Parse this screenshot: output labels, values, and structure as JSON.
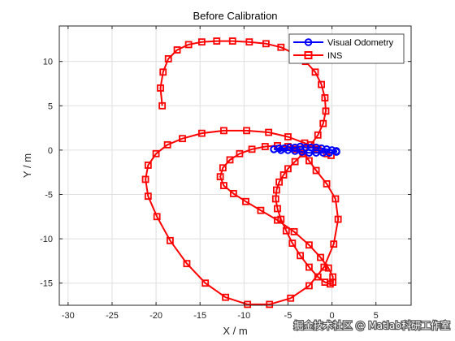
{
  "chart_data": {
    "type": "line",
    "title": "Before Calibration",
    "xlabel": "X / m",
    "ylabel": "Y / m",
    "xlim": [
      -31,
      9
    ],
    "ylim": [
      -17.5,
      14
    ],
    "xticks": [
      -30,
      -25,
      -20,
      -15,
      -10,
      -5,
      0,
      5
    ],
    "yticks": [
      -15,
      -10,
      -5,
      0,
      5,
      10
    ],
    "grid": true,
    "legend_position": "top-right",
    "series": [
      {
        "name": "Visual Odometry",
        "color": "#0000ff",
        "marker": "circle",
        "x": [
          -6.6,
          -6.0,
          -5.4,
          -4.8,
          -4.2,
          -3.6,
          -3.0,
          -2.4,
          -1.8,
          -1.2,
          -0.6,
          0.0,
          0.5,
          0.5,
          -0.3,
          -1.0,
          -1.8,
          -2.6,
          -3.4,
          -4.2,
          -5.0,
          -5.8,
          -6.6
        ],
        "y": [
          0.1,
          0.2,
          0.2,
          0.3,
          0.3,
          0.4,
          0.3,
          0.3,
          0.3,
          0.2,
          0.1,
          0.0,
          -0.1,
          -0.2,
          -0.3,
          -0.3,
          -0.3,
          -0.3,
          -0.2,
          -0.1,
          0.0,
          0.0,
          0.1
        ]
      },
      {
        "name": "INS",
        "color": "#ff0000",
        "marker": "square",
        "x": [
          -19.3,
          -19.5,
          -19.2,
          -18.6,
          -17.6,
          -16.3,
          -14.8,
          -13.1,
          -11.3,
          -9.4,
          -7.5,
          -5.8,
          -4.3,
          -3.0,
          -1.9,
          -1.2,
          -0.8,
          -0.7,
          -1.0,
          -1.6,
          -2.4,
          -3.3,
          -4.2,
          -5.0,
          -5.5,
          -6.0,
          -6.3,
          -6.4,
          -6.2,
          -5.8,
          -5.2,
          -4.5,
          -3.6,
          -2.6,
          -1.6,
          -0.8,
          -0.2,
          0.1,
          0.1,
          -0.4,
          -1.3,
          -2.6,
          -4.3,
          -6.2,
          -8.1,
          -9.8,
          -11.2,
          -12.3,
          -12.7,
          -12.4,
          -11.6,
          -10.5,
          -9.1,
          -7.6,
          -6.2,
          -5.0,
          -4.0,
          -3.2,
          -2.6,
          -1.8,
          -0.6,
          0.4,
          0.7,
          0.2,
          -0.9,
          -2.6,
          -4.7,
          -7.1,
          -9.6,
          -12.1,
          -14.4,
          -16.5,
          -18.4,
          -19.9,
          -20.9,
          -21.2,
          -20.9,
          -20.0,
          -18.7,
          -17.0,
          -14.8,
          -12.3,
          -9.7,
          -7.2,
          -5.0,
          -3.1,
          -1.6,
          -0.6,
          -0.1
        ],
        "y": [
          5.0,
          7.0,
          8.8,
          10.3,
          11.3,
          11.9,
          12.2,
          12.3,
          12.3,
          12.2,
          12.0,
          11.6,
          10.9,
          10.0,
          8.8,
          7.4,
          5.9,
          4.4,
          3.0,
          1.7,
          0.6,
          -0.4,
          -1.3,
          -2.1,
          -2.8,
          -3.6,
          -4.5,
          -5.5,
          -6.6,
          -7.8,
          -9.1,
          -10.5,
          -11.9,
          -13.2,
          -14.3,
          -14.9,
          -15.1,
          -14.9,
          -14.3,
          -13.3,
          -12.1,
          -10.7,
          -9.2,
          -7.9,
          -6.8,
          -5.8,
          -4.9,
          -4.0,
          -3.0,
          -2.0,
          -1.1,
          -0.4,
          0.1,
          0.4,
          0.5,
          0.4,
          0.1,
          -0.4,
          -1.2,
          -2.3,
          -3.8,
          -5.5,
          -7.8,
          -10.6,
          -13.2,
          -15.3,
          -16.7,
          -17.4,
          -17.4,
          -16.6,
          -15.0,
          -12.8,
          -10.2,
          -7.5,
          -5.2,
          -3.3,
          -1.7,
          -0.4,
          0.6,
          1.3,
          1.9,
          2.2,
          2.2,
          2.0,
          1.5,
          0.8,
          0.1,
          -0.4,
          -0.6
        ]
      }
    ]
  },
  "watermark": "掘金技术社区 @ Matlab科研工作室"
}
